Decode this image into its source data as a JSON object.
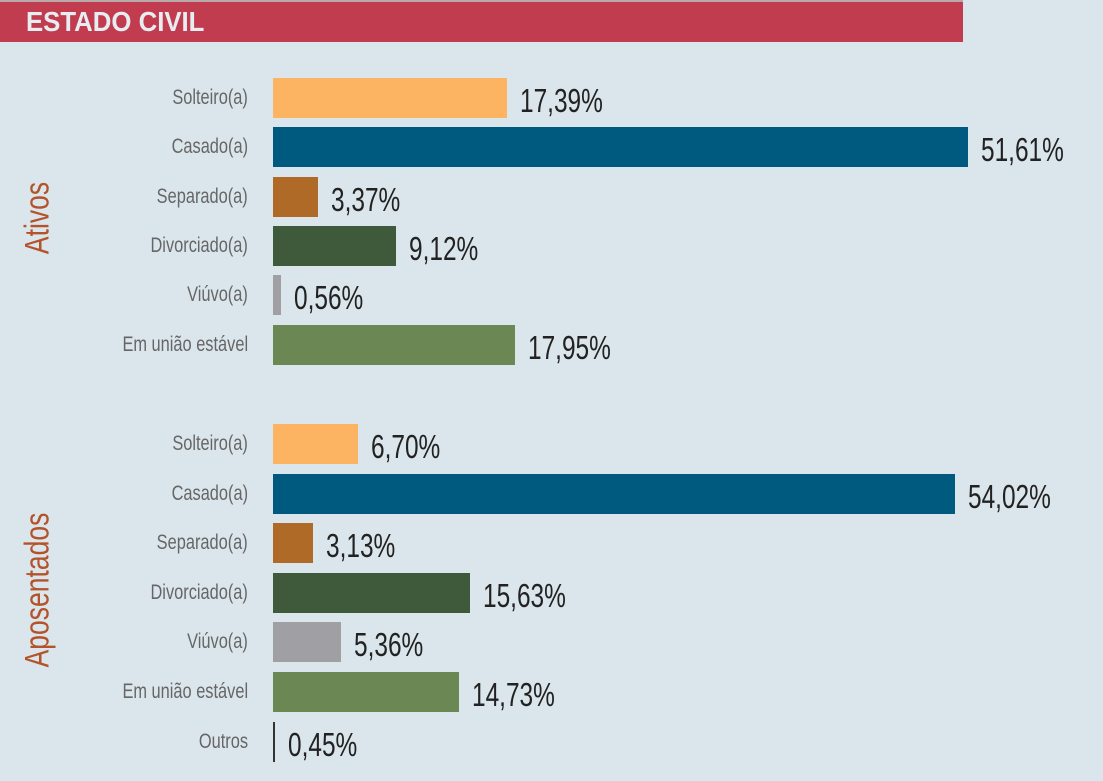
{
  "chart_data": {
    "type": "bar",
    "orientation": "horizontal",
    "title": "ESTADO CIVIL",
    "unit": "%",
    "groups": [
      {
        "name": "Ativos",
        "categories": [
          "Solteiro(a)",
          "Casado(a)",
          "Separado(a)",
          "Divorciado(a)",
          "Viúvo(a)",
          "Em união estável"
        ],
        "values": [
          17.39,
          51.61,
          3.37,
          9.12,
          0.56,
          17.95
        ],
        "labels": [
          "17,39%",
          "51,61%",
          "3,37%",
          "9,12%",
          "0,56%",
          "17,95%"
        ]
      },
      {
        "name": "Aposentados",
        "categories": [
          "Solteiro(a)",
          "Casado(a)",
          "Separado(a)",
          "Divorciado(a)",
          "Viúvo(a)",
          "Em união estável",
          "Outros"
        ],
        "values": [
          6.7,
          54.02,
          3.13,
          15.63,
          5.36,
          14.73,
          0.45
        ],
        "labels": [
          "6,70%",
          "54,02%",
          "3,13%",
          "15,63%",
          "5,36%",
          "14,73%",
          "0,45%"
        ]
      }
    ],
    "colors": {
      "Solteiro(a)": "#fdb462",
      "Casado(a)": "#005a80",
      "Separado(a)": "#b06a28",
      "Divorciado(a)": "#3f5a3a",
      "Viúvo(a)": "#a09fa4",
      "Em união estável": "#6a8754",
      "Outros": "#333333"
    }
  }
}
